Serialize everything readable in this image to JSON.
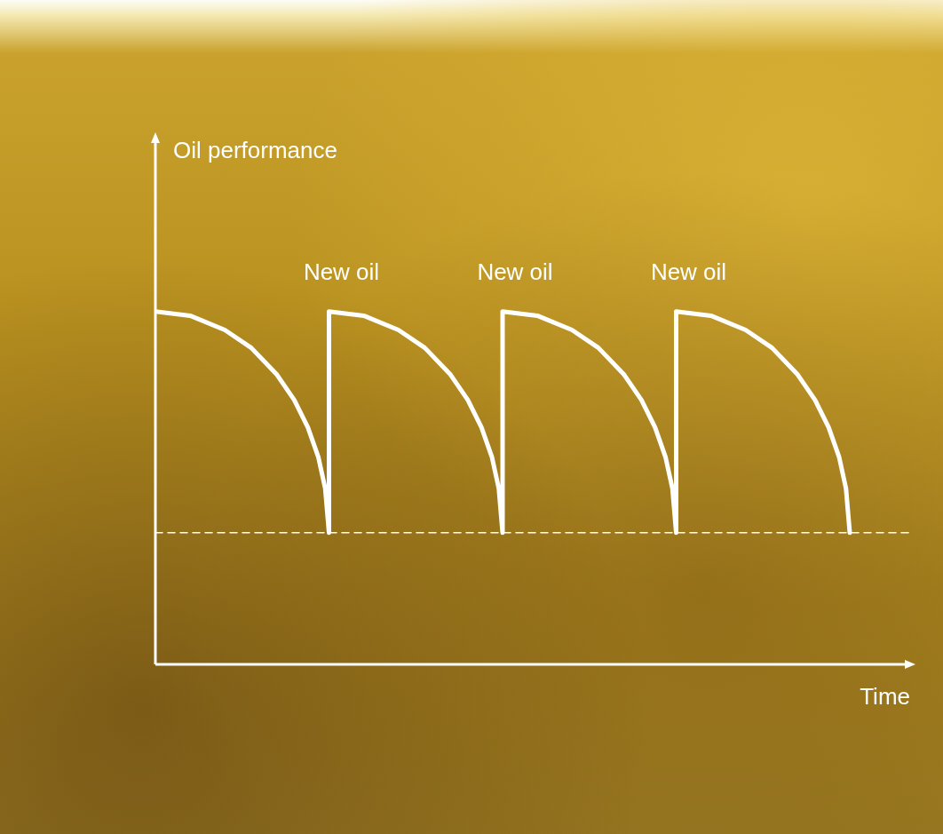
{
  "chart_data": {
    "type": "line",
    "x_label": "Time",
    "y_label": "Oil performance",
    "series": [
      {
        "color": "#ffffff",
        "line_style": "solid",
        "x": [
          0,
          4.6,
          9.2,
          12.7,
          16.1,
          18.4,
          20.2,
          21.6,
          22.5,
          23,
          23,
          27.6,
          32.2,
          35.7,
          39.1,
          41.4,
          43.2,
          44.6,
          45.5,
          46,
          46,
          50.6,
          55.2,
          58.7,
          62.1,
          64.4,
          66.2,
          67.6,
          68.5,
          69,
          69,
          73.6,
          78.2,
          81.7,
          85.1,
          87.4,
          89.2,
          90.6,
          91.5,
          92
        ],
        "values": [
          67,
          66.2,
          63.5,
          60.1,
          55,
          50.2,
          45,
          39.3,
          33.4,
          25,
          67,
          66.2,
          63.5,
          60.1,
          55,
          50.2,
          45,
          39.3,
          33.4,
          25,
          67,
          66.2,
          63.5,
          60.1,
          55,
          50.2,
          45,
          39.3,
          33.4,
          25,
          67,
          66.2,
          63.5,
          60.1,
          55,
          50.2,
          45,
          39.3,
          33.4,
          25
        ]
      },
      {
        "color": "#ffffff",
        "line_style": "dashed",
        "x": [
          0,
          100
        ],
        "values": [
          25,
          25
        ]
      }
    ],
    "annotations": [
      {
        "text": "New oil",
        "x": 23,
        "y": 67
      },
      {
        "text": "New oil",
        "x": 46,
        "y": 67
      },
      {
        "text": "New oil",
        "x": 69,
        "y": 67
      }
    ],
    "xlim": [
      0,
      100
    ],
    "ylim": [
      0,
      100
    ],
    "xticks": [],
    "yticks": [],
    "tick_labels": false,
    "grid": false
  }
}
